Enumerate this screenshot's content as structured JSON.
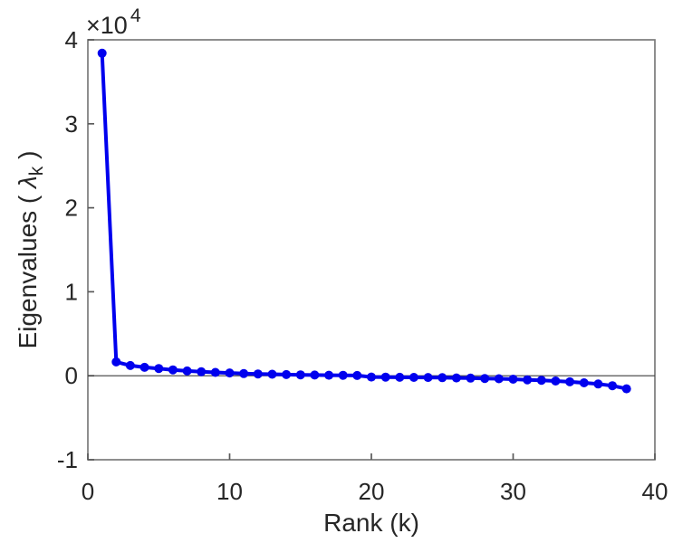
{
  "chart_data": {
    "type": "line",
    "title": "",
    "xlabel": "Rank (k)",
    "ylabel_prefix": "Eigenvalues ( ",
    "ylabel_symbol": "λ",
    "ylabel_subscript": "k",
    "ylabel_suffix": " )",
    "y_axis_multiplier_base": "×10",
    "y_axis_multiplier_exp": "4",
    "x": [
      1,
      2,
      3,
      4,
      5,
      6,
      7,
      8,
      9,
      10,
      11,
      12,
      13,
      14,
      15,
      16,
      17,
      18,
      19,
      20,
      21,
      22,
      23,
      24,
      25,
      26,
      27,
      28,
      29,
      30,
      31,
      32,
      33,
      34,
      35,
      36,
      37,
      38
    ],
    "series": [
      {
        "name": "eigenvalues",
        "values": [
          38400,
          1650,
          1220,
          1000,
          860,
          700,
          570,
          470,
          400,
          330,
          260,
          220,
          180,
          140,
          110,
          90,
          70,
          50,
          30,
          -150,
          -165,
          -180,
          -195,
          -210,
          -230,
          -255,
          -285,
          -320,
          -360,
          -410,
          -480,
          -540,
          -620,
          -720,
          -840,
          -980,
          -1180,
          -1550
        ]
      }
    ],
    "xlim": [
      0,
      40
    ],
    "ylim": [
      -10000,
      40000
    ],
    "xticks": [
      0,
      10,
      20,
      30,
      40
    ],
    "xtick_labels": [
      "0",
      "10",
      "20",
      "30",
      "40"
    ],
    "yticks": [
      -10000,
      0,
      10000,
      20000,
      30000,
      40000
    ],
    "ytick_labels": [
      "-1",
      "0",
      "1",
      "2",
      "3",
      "4"
    ],
    "grid": false,
    "legend": "none",
    "zero_line": true,
    "colors": {
      "line": "#0000EE",
      "marker": "#0000EE",
      "axis_box": "#7b7b7b",
      "tick": "#5a5a5a",
      "zero_line": "#3d3d3d",
      "text": "#262626",
      "background": "#ffffff"
    }
  }
}
